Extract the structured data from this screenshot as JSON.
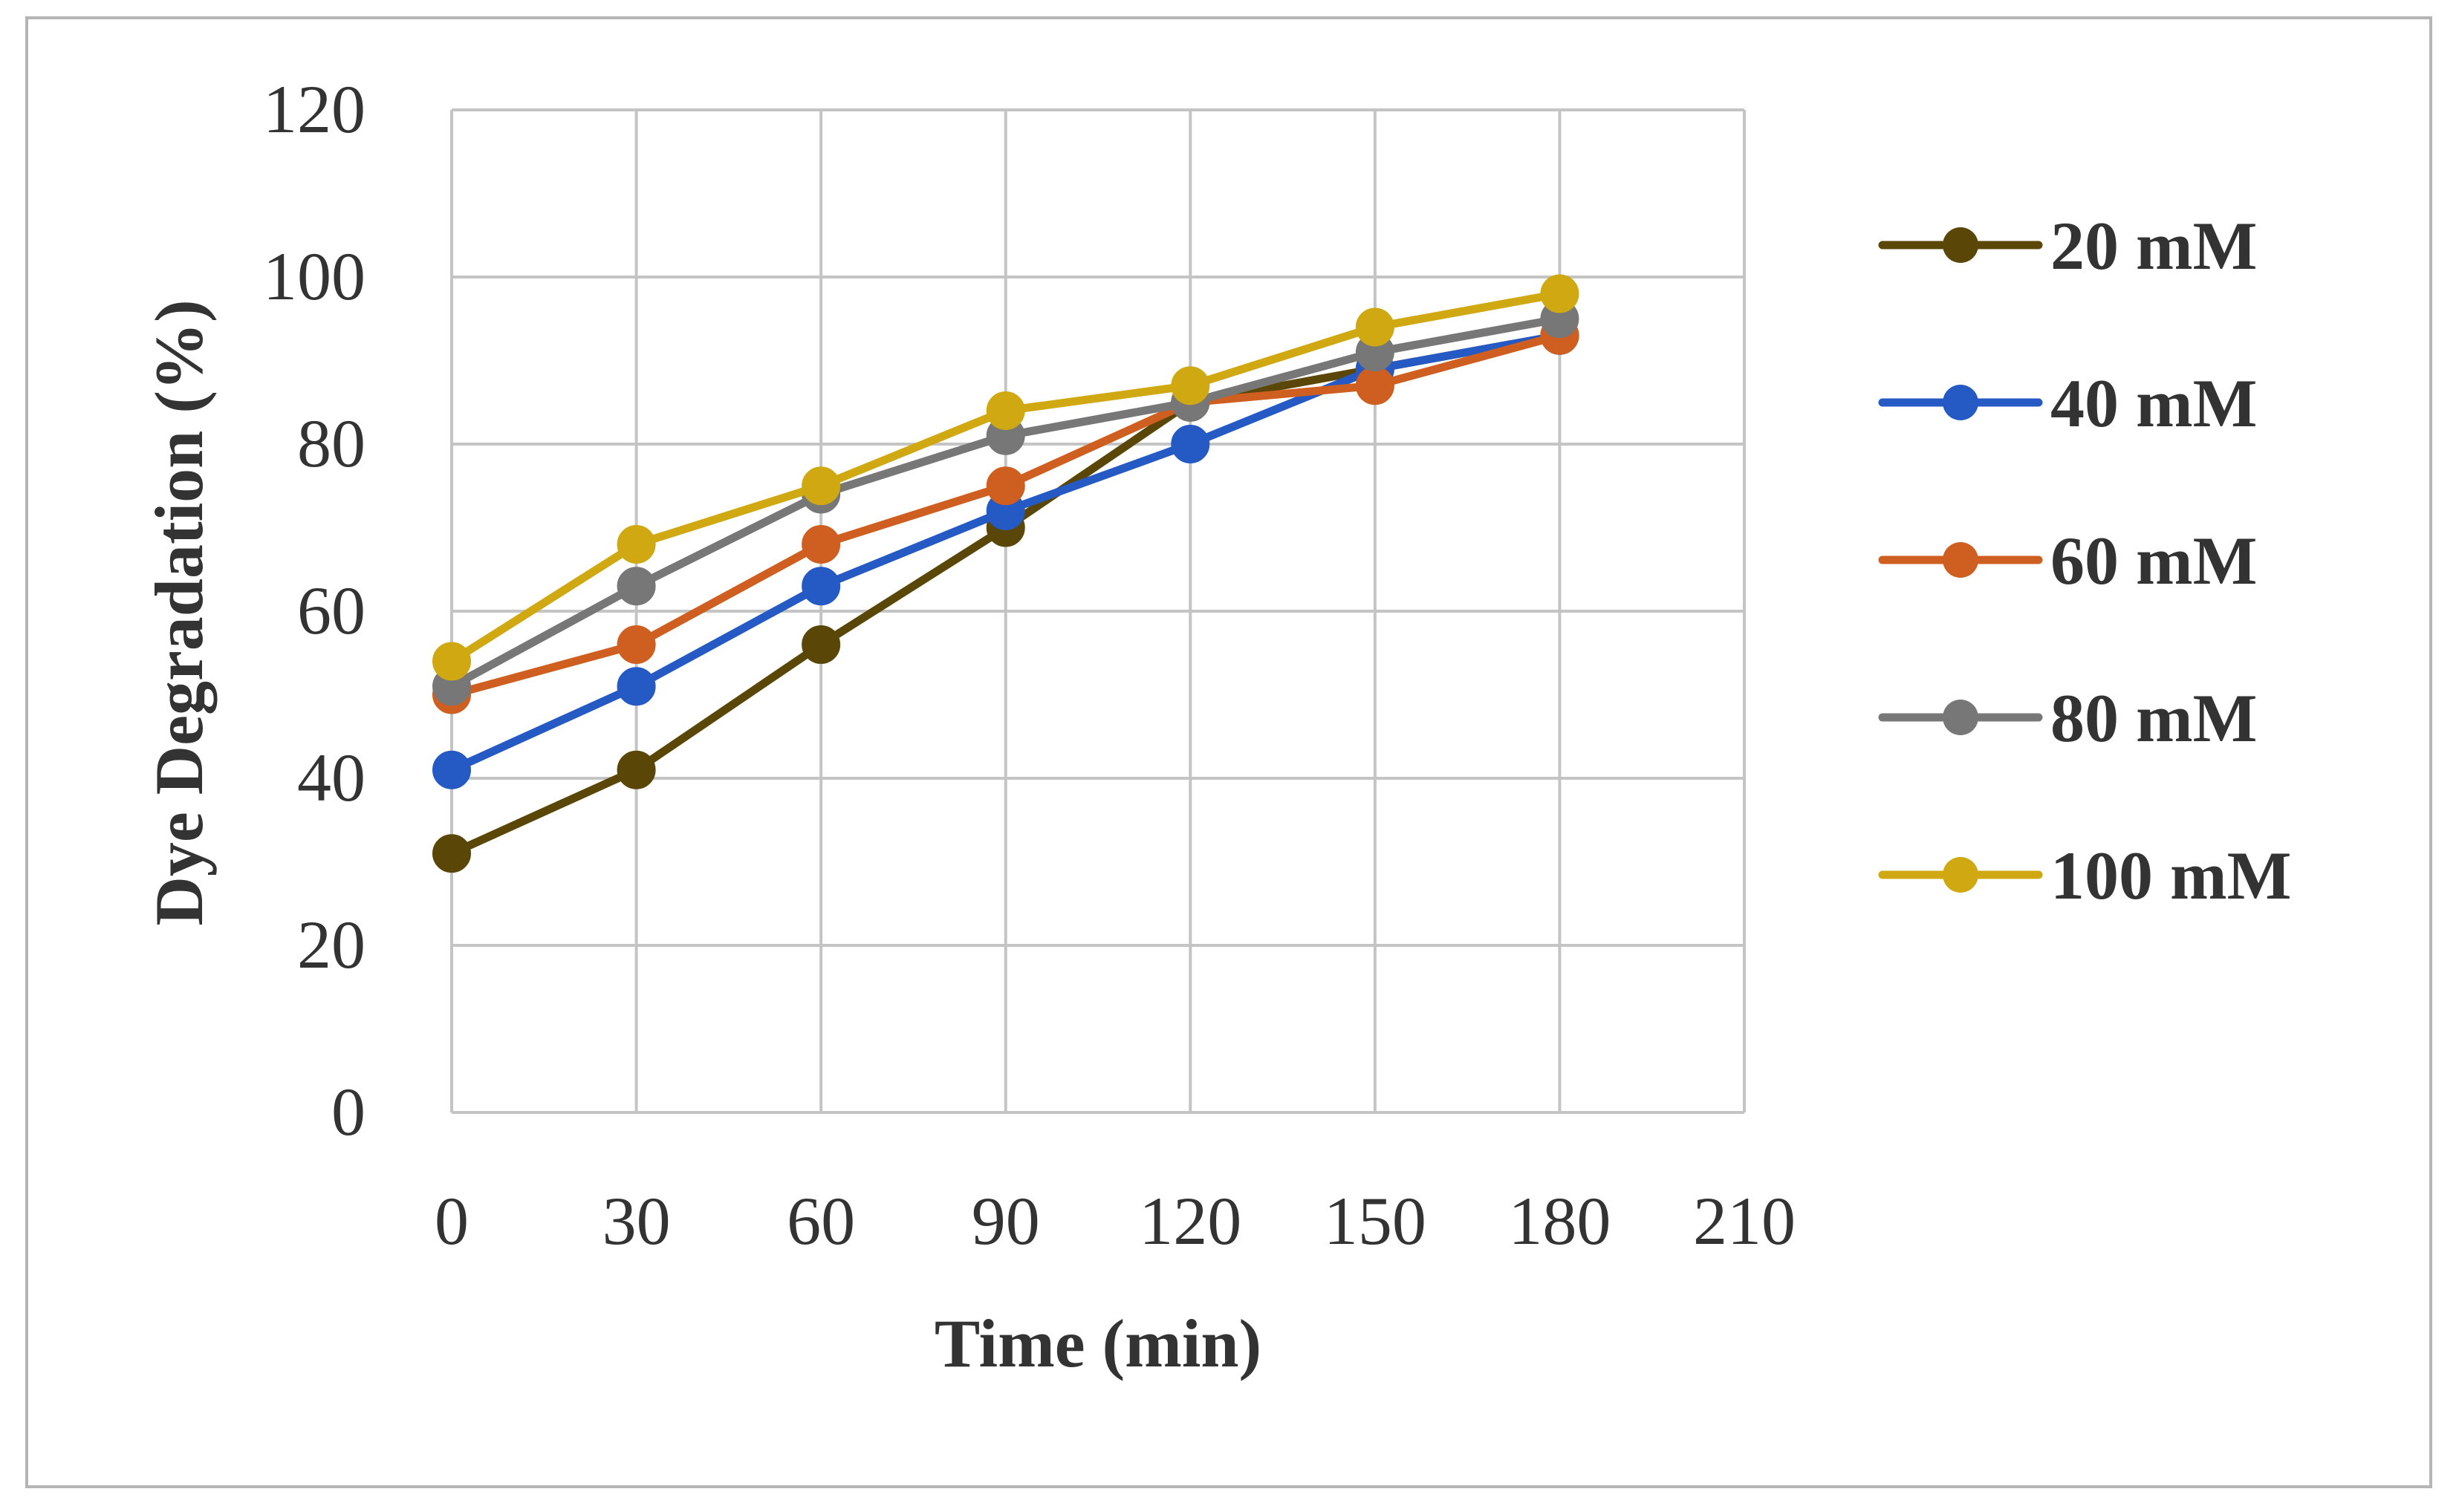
{
  "chart_data": {
    "type": "line",
    "title": "",
    "xlabel": "Time (min)",
    "ylabel": "Dye Degradation (%)",
    "x": [
      0,
      30,
      60,
      90,
      120,
      150,
      180
    ],
    "xlim": [
      0,
      210
    ],
    "xticks": [
      0,
      30,
      60,
      90,
      120,
      150,
      180,
      210
    ],
    "ylim": [
      0,
      120
    ],
    "yticks": [
      0,
      20,
      40,
      60,
      80,
      100,
      120
    ],
    "grid": true,
    "legend_position": "right",
    "series": [
      {
        "name": "20 mM",
        "color": "#5a4708",
        "values": [
          31,
          41,
          56,
          70,
          85,
          89,
          93
        ]
      },
      {
        "name": "40 mM",
        "color": "#2559c4",
        "values": [
          41,
          51,
          63,
          72,
          80,
          89,
          93
        ]
      },
      {
        "name": "60 mM",
        "color": "#cf5f20",
        "values": [
          50,
          56,
          68,
          75,
          85,
          87,
          93
        ]
      },
      {
        "name": "80 mM",
        "color": "#777777",
        "values": [
          51,
          63,
          74,
          81,
          85,
          91,
          95
        ]
      },
      {
        "name": "100 mM",
        "color": "#d0a812",
        "values": [
          54,
          68,
          75,
          84,
          87,
          94,
          98
        ]
      }
    ]
  }
}
